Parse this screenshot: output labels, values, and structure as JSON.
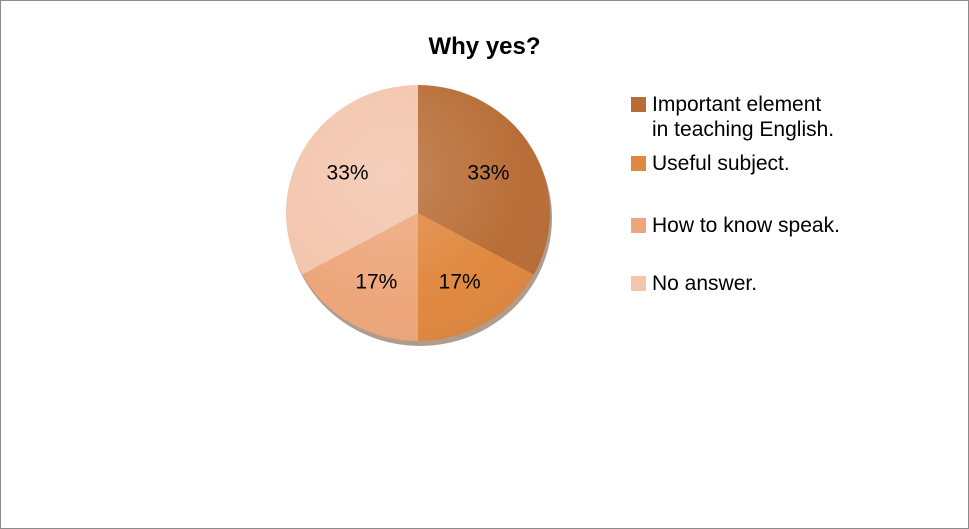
{
  "chart_data": {
    "type": "pie",
    "title": "Why yes?",
    "categories": [
      "Important element in teaching English.",
      "Useful subject.",
      "How to know speak.",
      "No answer."
    ],
    "values": [
      33,
      17,
      17,
      33
    ],
    "data_labels": [
      "33%",
      "17%",
      "17%",
      "33%"
    ],
    "colors": [
      "#b86d36",
      "#e0883f",
      "#eda67b",
      "#f3c5ad"
    ],
    "legend_position": "right",
    "legend_labels": [
      "Important element\nin teaching English.",
      "Useful subject.",
      "How to know speak.",
      "No answer."
    ]
  }
}
